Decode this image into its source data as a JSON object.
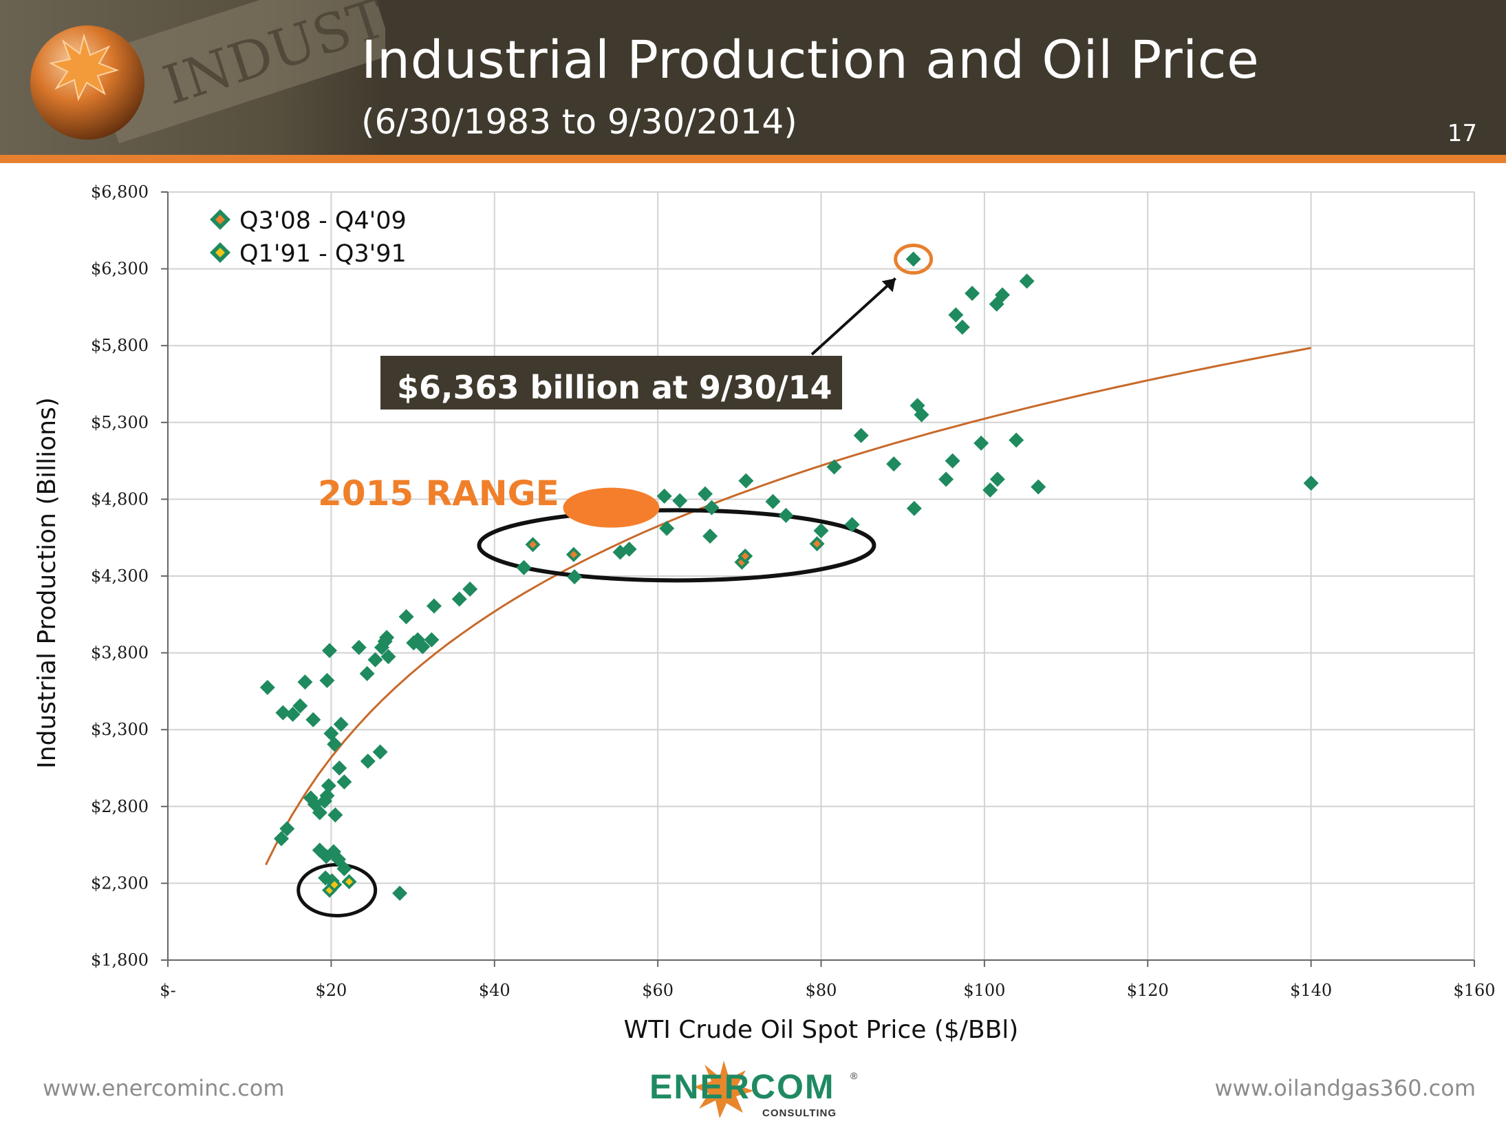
{
  "header": {
    "title": "Industrial Production and Oil Price",
    "subtitle": "(6/30/1983 to 9/30/2014)",
    "slide_number": "17",
    "banner_word": "INDUSTR"
  },
  "colors": {
    "header_bg": "#403a2e",
    "accent": "#e7802e",
    "marker": "#1e8a5e",
    "marker_2008": "#e7802e",
    "marker_1991": "#f2c415",
    "trend": "#c8692a",
    "callout_bg": "#403a2e",
    "range_text": "#f07f2a"
  },
  "chart_data": {
    "type": "scatter",
    "title": "Industrial Production and Oil Price",
    "xlabel": "WTI Crude Oil Spot Price ($/BBl)",
    "ylabel": "Industrial Production (Billions)",
    "xlim": [
      0,
      160
    ],
    "ylim": [
      1800,
      6800
    ],
    "x_ticks": [
      0,
      20,
      40,
      60,
      80,
      100,
      120,
      140,
      160
    ],
    "x_tick_labels": [
      "$-",
      "$20",
      "$40",
      "$60",
      "$80",
      "$100",
      "$120",
      "$140",
      "$160"
    ],
    "y_ticks": [
      1800,
      2300,
      2800,
      3300,
      3800,
      4300,
      4800,
      5300,
      5800,
      6300,
      6800
    ],
    "y_tick_labels": [
      "$1,800",
      "$2,300",
      "$2,800",
      "$3,300",
      "$3,800",
      "$4,300",
      "$4,800",
      "$5,300",
      "$5,800",
      "$6,300",
      "$6,800"
    ],
    "grid": true,
    "legend": {
      "position": "top-left",
      "entries": [
        {
          "label": "Q3'08 - Q4'09",
          "group": "q3_08_q4_09"
        },
        {
          "label": "Q1'91 - Q3'91",
          "group": "q1_91_q3_91"
        }
      ]
    },
    "series": [
      {
        "name": "Quarterly observations",
        "group": "main",
        "points": [
          [
            12.2,
            3575
          ],
          [
            14.1,
            3410
          ],
          [
            15.3,
            3400
          ],
          [
            16.2,
            3455
          ],
          [
            16.8,
            3610
          ],
          [
            17.8,
            3365
          ],
          [
            19.5,
            3620
          ],
          [
            19.8,
            3815
          ],
          [
            20.0,
            3275
          ],
          [
            20.4,
            3205
          ],
          [
            21.2,
            3335
          ],
          [
            23.4,
            3835
          ],
          [
            24.4,
            3665
          ],
          [
            25.4,
            3755
          ],
          [
            26.2,
            3835
          ],
          [
            26.6,
            3875
          ],
          [
            26.8,
            3900
          ],
          [
            27.0,
            3775
          ],
          [
            29.2,
            4035
          ],
          [
            30.1,
            3865
          ],
          [
            30.6,
            3885
          ],
          [
            31.2,
            3840
          ],
          [
            32.3,
            3885
          ],
          [
            32.6,
            4105
          ],
          [
            35.7,
            4150
          ],
          [
            37.0,
            4215
          ],
          [
            13.9,
            2590
          ],
          [
            14.6,
            2655
          ],
          [
            17.5,
            2855
          ],
          [
            18.0,
            2815
          ],
          [
            18.6,
            2760
          ],
          [
            19.5,
            2870
          ],
          [
            19.7,
            2935
          ],
          [
            20.5,
            2745
          ],
          [
            19.2,
            2835
          ],
          [
            21.0,
            3050
          ],
          [
            21.6,
            2960
          ],
          [
            24.5,
            3095
          ],
          [
            26.0,
            3155
          ],
          [
            18.6,
            2515
          ],
          [
            19.4,
            2475
          ],
          [
            20.3,
            2505
          ],
          [
            20.9,
            2455
          ],
          [
            21.6,
            2395
          ],
          [
            19.3,
            2335
          ],
          [
            20.1,
            2315
          ],
          [
            28.4,
            2235
          ],
          [
            43.6,
            4355
          ],
          [
            49.8,
            4295
          ],
          [
            55.4,
            4455
          ],
          [
            56.5,
            4475
          ],
          [
            60.8,
            4820
          ],
          [
            61.1,
            4610
          ],
          [
            62.7,
            4790
          ],
          [
            65.8,
            4835
          ],
          [
            66.4,
            4560
          ],
          [
            66.6,
            4745
          ],
          [
            70.8,
            4920
          ],
          [
            74.1,
            4785
          ],
          [
            75.7,
            4695
          ],
          [
            80.0,
            4595
          ],
          [
            81.6,
            5010
          ],
          [
            83.8,
            4635
          ],
          [
            84.9,
            5215
          ],
          [
            88.9,
            5030
          ],
          [
            91.4,
            4740
          ],
          [
            91.8,
            5410
          ],
          [
            92.3,
            5350
          ],
          [
            95.3,
            4930
          ],
          [
            96.1,
            5050
          ],
          [
            96.5,
            6000
          ],
          [
            97.3,
            5920
          ],
          [
            98.5,
            6140
          ],
          [
            99.6,
            5165
          ],
          [
            100.7,
            4860
          ],
          [
            101.5,
            6070
          ],
          [
            101.6,
            4930
          ],
          [
            102.2,
            6130
          ],
          [
            103.9,
            5185
          ],
          [
            105.2,
            6220
          ],
          [
            106.6,
            4880
          ],
          [
            140.0,
            4905
          ],
          [
            91.3,
            6363
          ]
        ]
      },
      {
        "name": "Q3'08 - Q4'09",
        "group": "q3_08_q4_09",
        "points": [
          [
            44.7,
            4505
          ],
          [
            49.7,
            4440
          ],
          [
            70.3,
            4390
          ],
          [
            70.7,
            4430
          ],
          [
            79.5,
            4510
          ]
        ]
      },
      {
        "name": "Q1'91 - Q3'91",
        "group": "q1_91_q3_91",
        "points": [
          [
            19.8,
            2255
          ],
          [
            20.4,
            2290
          ],
          [
            22.2,
            2310
          ]
        ]
      },
      {
        "name": "Trend line",
        "group": "trend",
        "type": "line",
        "x_range": [
          12,
          140
        ],
        "y_start": 2420,
        "y_end": 5785
      }
    ],
    "annotations": [
      {
        "text": "$6,363 billion at 9/30/14",
        "target": [
          91.3,
          6363
        ],
        "style": "dark-callout"
      },
      {
        "text": "2015 RANGE",
        "style": "orange-label",
        "range_ellipse_center": [
          54.3,
          4745
        ]
      },
      {
        "text": "",
        "style": "ellipse-2008",
        "center": [
          62.3,
          4500
        ]
      },
      {
        "text": "",
        "style": "ellipse-1991",
        "center": [
          20.7,
          2255
        ]
      }
    ]
  },
  "footer": {
    "left_url": "www.enercominc.com",
    "right_url": "www.oilandgas360.com",
    "brand_name": "ENERCOM",
    "brand_registered": "®",
    "brand_sub": "CONSULTING"
  }
}
